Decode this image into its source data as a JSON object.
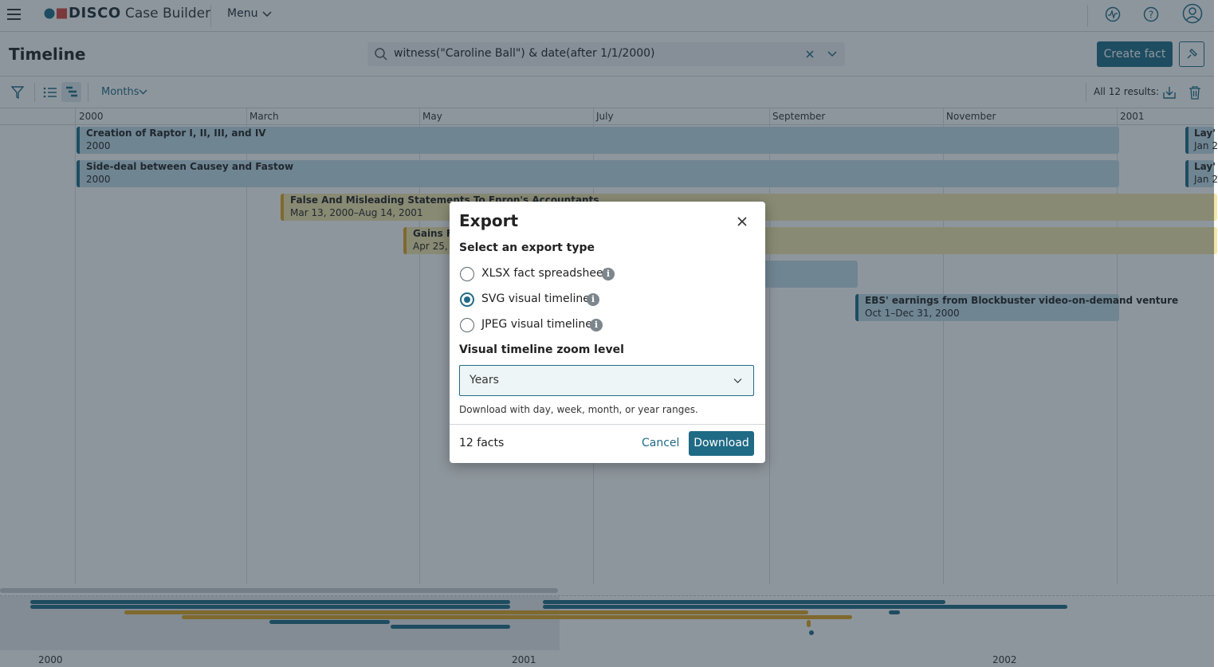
{
  "header": {
    "brand": "DISCO",
    "product": "Case Builder",
    "menu": "Menu"
  },
  "toolbar": {
    "title": "Timeline",
    "search": "witness(\"Caroline Ball\") & date(after 1/1/2000)",
    "create_fact": "Create fact"
  },
  "subbar": {
    "zoom": "Months",
    "results": "All 12 results:"
  },
  "timeline": {
    "months": [
      "2000",
      "March",
      "May",
      "July",
      "September",
      "November",
      "2001"
    ],
    "facts": [
      {
        "title": "Creation of Raptor I, II, III, and IV",
        "date": "2000"
      },
      {
        "title": "Side-deal between Causey and Fastow",
        "date": "2000"
      },
      {
        "title": "False And Misleading Statements To Enron's Accountants",
        "date": "Mar 13, 2000–Aug 14, 2001"
      },
      {
        "title": "Gains Fr",
        "date": "Apr 25, 2"
      },
      {
        "title": "EBS' earnings from Blockbuster video-on-demand venture",
        "date": "Oct 1–Dec 31, 2000"
      },
      {
        "title": "Lay'",
        "date": "Jan 2"
      },
      {
        "title": "Lay'",
        "date": "Jan 2"
      }
    ]
  },
  "overview": {
    "years": [
      "2000",
      "2001",
      "2002"
    ]
  },
  "dialog": {
    "title": "Export",
    "type_label": "Select an export type",
    "options": [
      "XLSX fact spreadsheet",
      "SVG visual timeline",
      "JPEG visual timeline"
    ],
    "zoom_label": "Visual timeline zoom level",
    "zoom_value": "Years",
    "help": "Download with day, week, month, or year ranges.",
    "count": "12 facts",
    "cancel": "Cancel",
    "download": "Download"
  }
}
